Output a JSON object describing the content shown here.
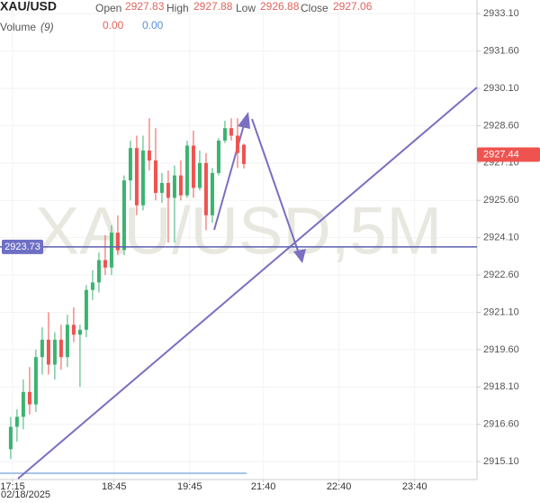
{
  "chart_data": {
    "type": "candlestick",
    "symbol": "XAU/USD",
    "watermark": "XAU/USD,5M",
    "legend": {
      "open_label": "Open",
      "open": 2927.83,
      "high_label": "High",
      "high": 2927.88,
      "low_label": "Low",
      "low": 2926.88,
      "close_label": "Close",
      "close": 2927.06,
      "volume_label": "Volume",
      "volume_param": "(9)",
      "volume_a": "0.00",
      "volume_b": "0.00"
    },
    "x": [
      0,
      1,
      2,
      3,
      4,
      5,
      6,
      7,
      8,
      9,
      10,
      11,
      12,
      13,
      14,
      15,
      16,
      17,
      18,
      19,
      20,
      21,
      22,
      23,
      24,
      25,
      26,
      27,
      28,
      29,
      30,
      31,
      32,
      33,
      34,
      35,
      36,
      37
    ],
    "open": [
      2915.6,
      2916.5,
      2916.9,
      2917.9,
      2917.4,
      2919.3,
      2920.0,
      2919.0,
      2920.0,
      2919.3,
      2920.6,
      2920.2,
      2920.4,
      2922.0,
      2922.3,
      2923.2,
      2922.9,
      2924.3,
      2923.6,
      2926.4,
      2927.7,
      2925.4,
      2927.6,
      2927.2,
      2925.9,
      2926.3,
      2925.7,
      2926.6,
      2925.8,
      2927.8,
      2926.1,
      2927.1,
      2925.0,
      2926.7,
      2928.0,
      2928.5,
      2928.2,
      2927.83
    ],
    "high": [
      2916.9,
      2917.2,
      2918.4,
      2918.9,
      2919.6,
      2920.5,
      2921.1,
      2920.3,
      2920.6,
      2921.0,
      2921.3,
      2920.6,
      2922.2,
      2922.8,
      2923.5,
      2924.2,
      2924.6,
      2925.0,
      2926.6,
      2928.0,
      2928.2,
      2928.2,
      2928.9,
      2928.5,
      2926.7,
      2926.8,
      2927.0,
      2927.2,
      2928.0,
      2928.4,
      2927.6,
      2927.5,
      2926.9,
      2928.1,
      2928.8,
      2928.9,
      2928.9,
      2927.88
    ],
    "low": [
      2915.2,
      2915.9,
      2916.4,
      2917.0,
      2917.1,
      2918.6,
      2918.6,
      2918.4,
      2918.8,
      2918.9,
      2919.9,
      2918.1,
      2920.1,
      2921.6,
      2921.9,
      2922.6,
      2922.6,
      2923.4,
      2923.4,
      2925.6,
      2925.0,
      2925.2,
      2926.8,
      2925.6,
      2925.5,
      2923.9,
      2923.9,
      2925.6,
      2925.7,
      2925.7,
      2926.0,
      2924.4,
      2924.7,
      2926.6,
      2927.9,
      2928.0,
      2926.9,
      2926.88
    ],
    "close": [
      2916.5,
      2916.9,
      2917.9,
      2917.4,
      2919.3,
      2920.0,
      2919.0,
      2920.0,
      2919.3,
      2920.6,
      2920.2,
      2920.4,
      2922.0,
      2922.3,
      2923.2,
      2922.9,
      2924.3,
      2923.6,
      2926.4,
      2927.7,
      2925.4,
      2927.6,
      2927.2,
      2925.9,
      2926.3,
      2925.7,
      2926.6,
      2925.8,
      2927.8,
      2926.1,
      2927.1,
      2925.0,
      2926.7,
      2928.0,
      2928.5,
      2928.2,
      2927.5,
      2927.06
    ],
    "up_color": "#3cb371",
    "down_color": "#ef5350",
    "last_price": 2927.44,
    "horizontal_level": 2923.73,
    "xlim": [
      -1.7,
      74
    ],
    "ylim": [
      2914.38,
      2933.65
    ],
    "xticks": [
      {
        "value": 0.3,
        "label": "17:15"
      },
      {
        "value": 16.4,
        "label": "18:45"
      },
      {
        "value": 28.4,
        "label": "19:45"
      },
      {
        "value": 40.1,
        "label": "21:40"
      },
      {
        "value": 52.1,
        "label": "22:40"
      },
      {
        "value": 64.1,
        "label": "23:40"
      }
    ],
    "date_label": "02/18/2025",
    "yticks": [
      {
        "value": 2915.1,
        "label": "2915.10"
      },
      {
        "value": 2916.6,
        "label": "2916.60"
      },
      {
        "value": 2918.1,
        "label": "2918.10"
      },
      {
        "value": 2919.6,
        "label": "2919.60"
      },
      {
        "value": 2921.1,
        "label": "2921.10"
      },
      {
        "value": 2922.6,
        "label": "2922.60"
      },
      {
        "value": 2924.1,
        "label": "2924.10"
      },
      {
        "value": 2925.6,
        "label": "2925.60"
      },
      {
        "value": 2927.1,
        "label": "2927.10"
      },
      {
        "value": 2928.6,
        "label": "2928.60"
      },
      {
        "value": 2930.1,
        "label": "2930.10"
      },
      {
        "value": 2931.6,
        "label": "2931.60"
      },
      {
        "value": 2933.1,
        "label": "2933.10"
      }
    ],
    "grid": true
  }
}
